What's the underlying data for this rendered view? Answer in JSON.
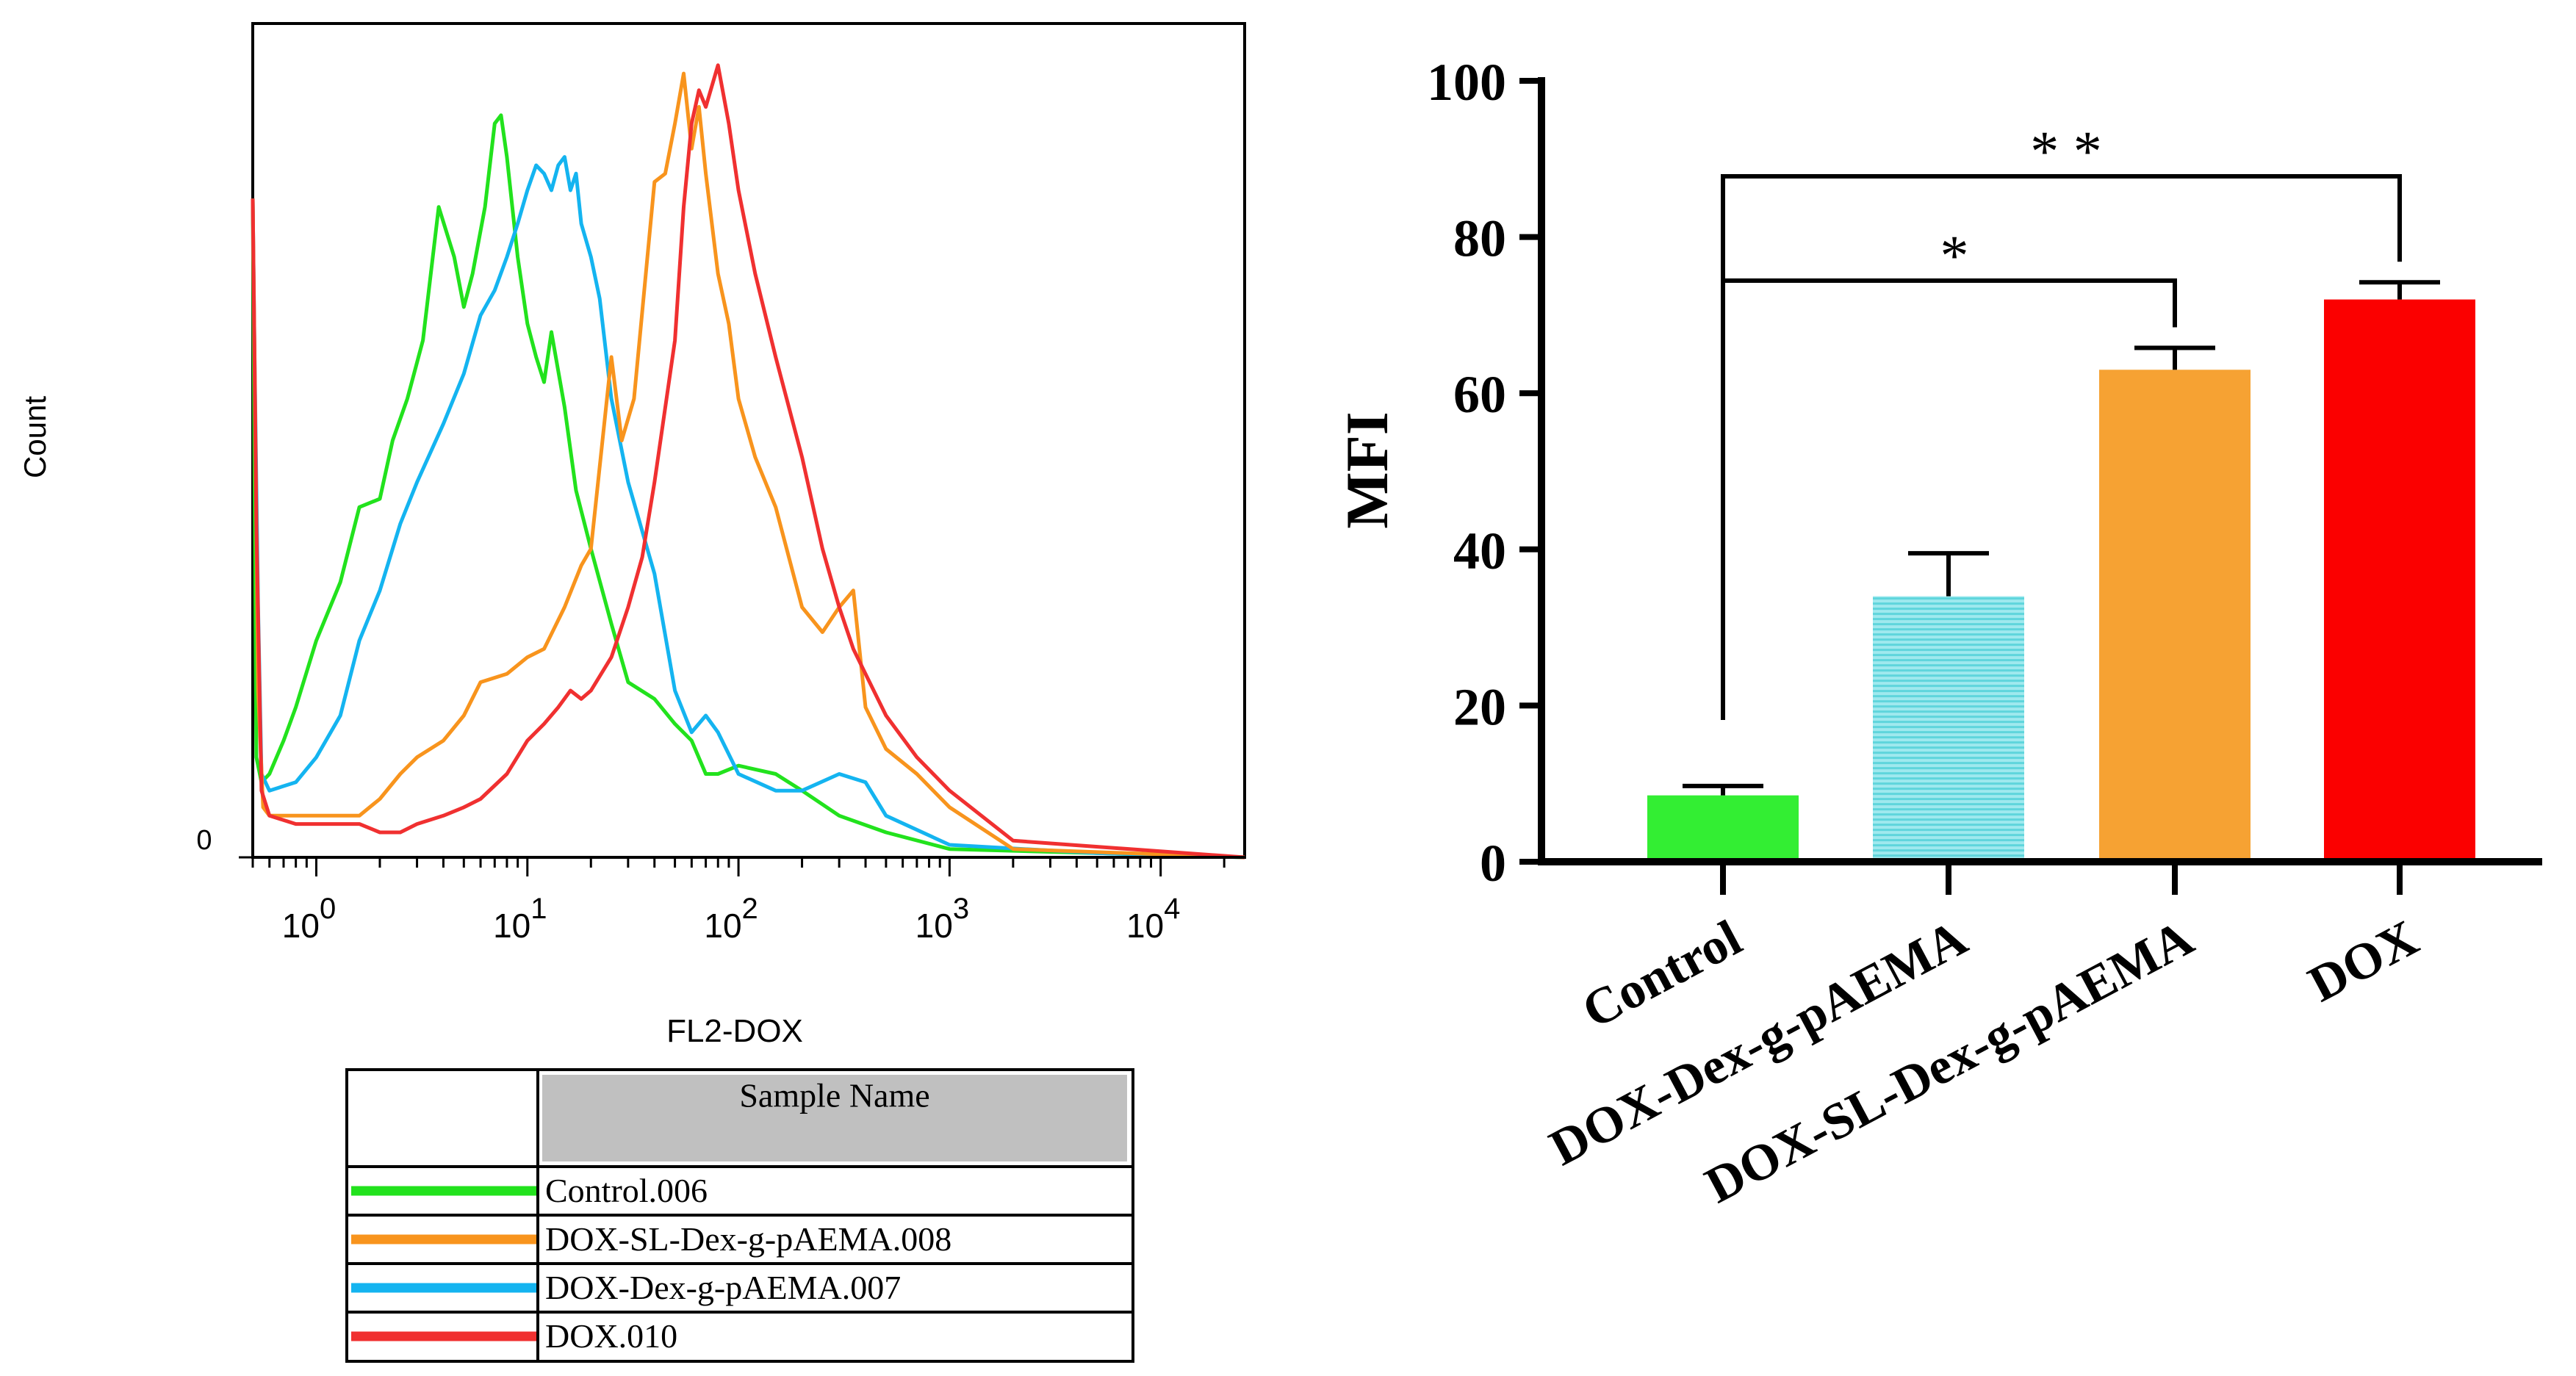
{
  "chart_data": [
    {
      "type": "line",
      "subtype": "flow-cytometry-histogram",
      "xlabel": "FL2-DOX",
      "ylabel": "Count",
      "xscale": "log",
      "xlim": [
        0.5,
        25000
      ],
      "ylim": [
        0,
        100
      ],
      "x_tick_labels": [
        {
          "value": 1,
          "base": "10",
          "exp": "0"
        },
        {
          "value": 10,
          "base": "10",
          "exp": "1"
        },
        {
          "value": 100,
          "base": "10",
          "exp": "2"
        },
        {
          "value": 1000,
          "base": "10",
          "exp": "3"
        },
        {
          "value": 10000,
          "base": "10",
          "exp": "4"
        }
      ],
      "y_tick_labels": [
        {
          "value": 0,
          "label": "0"
        }
      ],
      "legend": {
        "header": "Sample Name",
        "placement": "below-chart",
        "entries": [
          {
            "label": "Control.006",
            "color": "#22e21d"
          },
          {
            "label": "DOX-SL-Dex-g-pAEMA.008",
            "color": "#f8941d"
          },
          {
            "label": "DOX-Dex-g-pAEMA.007",
            "color": "#14b4f0"
          },
          {
            "label": "DOX.010",
            "color": "#f03030"
          }
        ]
      },
      "series": [
        {
          "name": "Control.006",
          "color": "#22e21d",
          "x": [
            0.5,
            0.52,
            0.55,
            0.6,
            0.7,
            0.8,
            1.0,
            1.3,
            1.6,
            2.0,
            2.3,
            2.7,
            3.2,
            3.8,
            4.5,
            5.0,
            5.5,
            6.3,
            7.0,
            7.5,
            8.0,
            9.0,
            10.0,
            11.0,
            12.0,
            13.0,
            15.0,
            17.0,
            20.0,
            25.0,
            30.0,
            40.0,
            50.0,
            60.0,
            70.0,
            80.0,
            100.0,
            150.0,
            200.0,
            300.0,
            500.0,
            1000.0,
            5000.0,
            25000.0
          ],
          "y": [
            79,
            12,
            9,
            10,
            14,
            18,
            26,
            33,
            42,
            43,
            50,
            55,
            62,
            78,
            72,
            66,
            70,
            78,
            88,
            89,
            84,
            72,
            64,
            60,
            57,
            63,
            54,
            44,
            37,
            28,
            21,
            19,
            16,
            14,
            10,
            10,
            11,
            10,
            8,
            5,
            3,
            1,
            0.5,
            0
          ]
        },
        {
          "name": "DOX-Dex-g-pAEMA.007",
          "color": "#14b4f0",
          "x": [
            0.5,
            0.51,
            0.53,
            0.55,
            0.6,
            0.8,
            1.0,
            1.3,
            1.6,
            2.0,
            2.5,
            3.0,
            4.0,
            5.0,
            6.0,
            7.0,
            8.0,
            9.0,
            10.0,
            11.0,
            12.0,
            13.0,
            14.0,
            15.0,
            16.0,
            17.0,
            18.0,
            20.0,
            22.0,
            25.0,
            30.0,
            40.0,
            50.0,
            60.0,
            70.0,
            80.0,
            100.0,
            150.0,
            200.0,
            300.0,
            400.0,
            500.0,
            1000.0,
            5000.0,
            25000.0
          ],
          "y": [
            79,
            60,
            30,
            10,
            8,
            9,
            12,
            17,
            26,
            32,
            40,
            45,
            52,
            58,
            65,
            68,
            72,
            76,
            80,
            83,
            82,
            80,
            83,
            84,
            80,
            82,
            76,
            72,
            67,
            55,
            45,
            34,
            20,
            15,
            17,
            15,
            10,
            8,
            8,
            10,
            9,
            5,
            1.5,
            0.5,
            0
          ]
        },
        {
          "name": "DOX-SL-Dex-g-pAEMA.008",
          "color": "#f8941d",
          "x": [
            0.5,
            0.51,
            0.53,
            0.56,
            0.6,
            0.8,
            1.0,
            1.3,
            1.6,
            2.0,
            2.5,
            3.0,
            4.0,
            5.0,
            6.0,
            8.0,
            10.0,
            12.0,
            15.0,
            18.0,
            20.0,
            25.0,
            28.0,
            32.0,
            40.0,
            45.0,
            50.0,
            55.0,
            60.0,
            65.0,
            70.0,
            80.0,
            90.0,
            100.0,
            120.0,
            150.0,
            200.0,
            250.0,
            300.0,
            350.0,
            400.0,
            500.0,
            700.0,
            1000.0,
            2000.0,
            25000.0
          ],
          "y": [
            79,
            60,
            20,
            6,
            5,
            5,
            5,
            5,
            5,
            7,
            10,
            12,
            14,
            17,
            21,
            22,
            24,
            25,
            30,
            35,
            37,
            60,
            50,
            55,
            81,
            82,
            88,
            94,
            85,
            90,
            82,
            70,
            64,
            55,
            48,
            42,
            30,
            27,
            30,
            32,
            18,
            13,
            10,
            6,
            1,
            0
          ]
        },
        {
          "name": "DOX.010",
          "color": "#f03030",
          "x": [
            0.5,
            0.52,
            0.55,
            0.6,
            0.8,
            1.0,
            1.3,
            1.6,
            2.0,
            2.5,
            3.0,
            4.0,
            5.0,
            6.0,
            8.0,
            10.0,
            12.0,
            14.0,
            16.0,
            18.0,
            20.0,
            25.0,
            30.0,
            35.0,
            40.0,
            50.0,
            55.0,
            60.0,
            65.0,
            70.0,
            80.0,
            90.0,
            100.0,
            120.0,
            150.0,
            200.0,
            250.0,
            300.0,
            350.0,
            400.0,
            500.0,
            700.0,
            1000.0,
            2000.0,
            25000.0
          ],
          "y": [
            79,
            40,
            8,
            5,
            4,
            4,
            4,
            4,
            3,
            3,
            4,
            5,
            6,
            7,
            10,
            14,
            16,
            18,
            20,
            19,
            20,
            24,
            30,
            36,
            45,
            62,
            78,
            88,
            92,
            90,
            95,
            88,
            80,
            70,
            60,
            48,
            37,
            30,
            25,
            22,
            17,
            12,
            8,
            2,
            0
          ]
        }
      ]
    },
    {
      "type": "bar",
      "categories": [
        "Control",
        "DOX-Dex-g-pAEMA",
        "DOX-SL-Dex-g-pAEMA",
        "DOX"
      ],
      "values": [
        8.5,
        34,
        63,
        72
      ],
      "errors": [
        1.2,
        5.5,
        2.8,
        2.2
      ],
      "colors": [
        "#33ee33",
        "#5fd5dc",
        "#f6a233",
        "#fb0000"
      ],
      "title": "",
      "xlabel": "",
      "ylabel": "MFI",
      "ylim": [
        0,
        100
      ],
      "yticks": [
        0,
        20,
        40,
        60,
        80,
        100
      ],
      "grid": false,
      "significance": [
        {
          "from": "Control",
          "to": "DOX-SL-Dex-g-pAEMA",
          "label": "*"
        },
        {
          "from": "Control",
          "to": "DOX",
          "label": "* *"
        }
      ]
    }
  ]
}
